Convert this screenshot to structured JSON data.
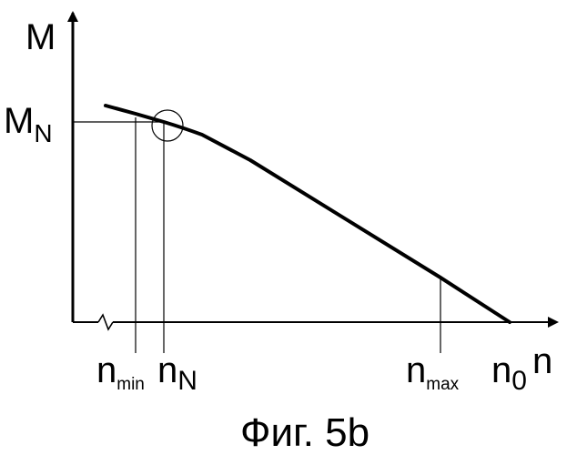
{
  "figure": {
    "caption": "Фиг. 5b"
  },
  "axes": {
    "y_label": "M",
    "x_label": "n"
  },
  "labels": {
    "m_n": {
      "base": "M",
      "sub": "N"
    },
    "n_min": {
      "base": "n",
      "sub": "min"
    },
    "n_n": {
      "base": "n",
      "sub": "N"
    },
    "n_max": {
      "base": "n",
      "sub": "max"
    },
    "n_0": {
      "base": "n",
      "sub": "0"
    }
  },
  "colors": {
    "ink": "#000000",
    "background": "#ffffff"
  }
}
